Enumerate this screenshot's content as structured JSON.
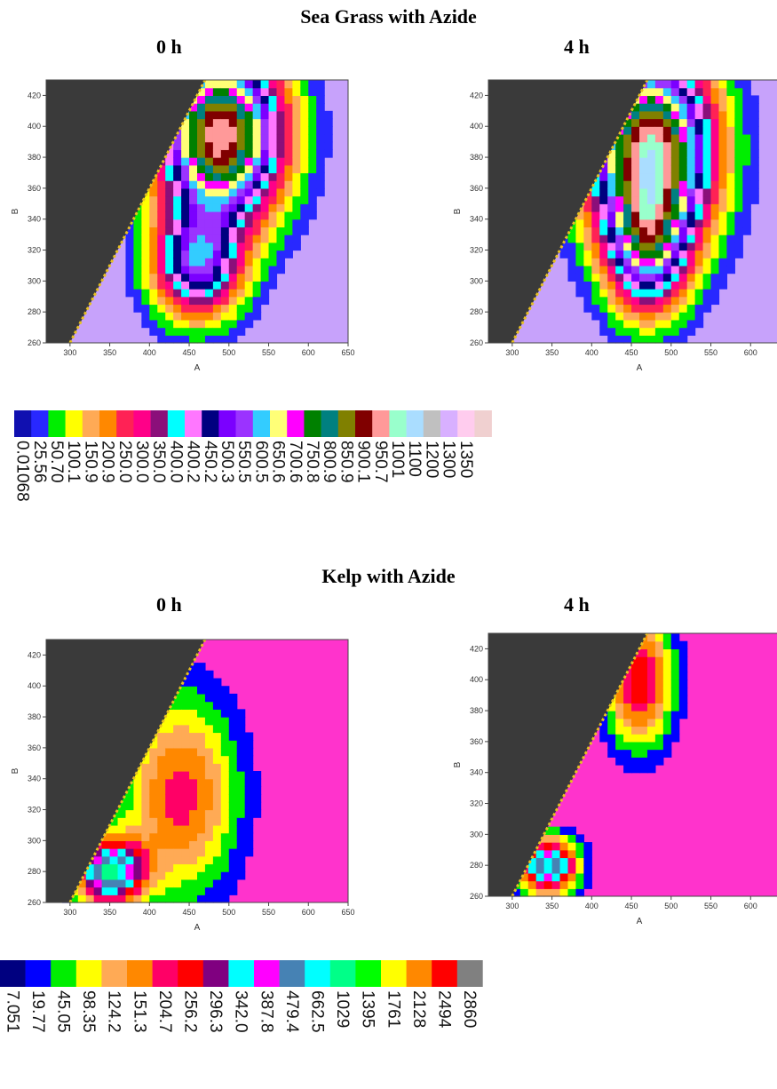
{
  "sections": [
    {
      "title": "Sea Grass with Azide",
      "panel_titles": [
        "0 h",
        "4 h"
      ]
    },
    {
      "title": "Kelp with Azide",
      "panel_titles": [
        "0 h",
        "4 h"
      ]
    }
  ],
  "colors": {
    "masked": "#3a3a3a",
    "axis": "#444444"
  },
  "chart_data": [
    {
      "type": "heatmap",
      "title": "0 h",
      "xlabel": "A",
      "ylabel": "B",
      "xlim": [
        270,
        650
      ],
      "ylim": [
        260,
        430
      ],
      "xticks": [
        300,
        350,
        400,
        450,
        500,
        550,
        600,
        650
      ],
      "yticks": [
        260,
        280,
        300,
        320,
        340,
        360,
        380,
        400,
        420
      ],
      "mask": "B > A - 40",
      "background_fill": "#c7a2fb",
      "peaks": [
        {
          "x": 490,
          "y": 395,
          "sx": 55,
          "sy": 40,
          "amp": 1.0
        },
        {
          "x": 460,
          "y": 310,
          "sx": 40,
          "sy": 25,
          "amp": 0.55
        }
      ]
    },
    {
      "type": "heatmap",
      "title": "4 h",
      "xlabel": "A",
      "ylabel": "B",
      "xlim": [
        270,
        650
      ],
      "ylim": [
        260,
        430
      ],
      "xticks": [
        300,
        350,
        400,
        450,
        500,
        550,
        600,
        650
      ],
      "yticks": [
        260,
        280,
        300,
        320,
        340,
        360,
        380,
        400,
        420
      ],
      "mask": "B > A - 40",
      "background_fill": "#c7a2fb",
      "peaks": [
        {
          "x": 475,
          "y": 385,
          "sx": 55,
          "sy": 45,
          "amp": 1.0
        },
        {
          "x": 470,
          "y": 320,
          "sx": 35,
          "sy": 30,
          "amp": 0.5
        }
      ]
    },
    {
      "type": "heatmap",
      "title": "0 h",
      "xlabel": "A",
      "ylabel": "B",
      "xlim": [
        270,
        650
      ],
      "ylim": [
        260,
        430
      ],
      "xticks": [
        300,
        350,
        400,
        450,
        500,
        550,
        600,
        650
      ],
      "yticks": [
        260,
        280,
        300,
        320,
        340,
        360,
        380,
        400,
        420
      ],
      "mask": "B > A - 40",
      "background_fill": "#ff33cc",
      "peaks": [
        {
          "x": 350,
          "y": 280,
          "sx": 30,
          "sy": 15,
          "amp": 1.0
        },
        {
          "x": 440,
          "y": 330,
          "sx": 50,
          "sy": 45,
          "amp": 0.5
        }
      ]
    },
    {
      "type": "heatmap",
      "title": "4 h",
      "xlabel": "A",
      "ylabel": "B",
      "xlim": [
        270,
        650
      ],
      "ylim": [
        260,
        430
      ],
      "xticks": [
        300,
        350,
        400,
        450,
        500,
        550,
        600,
        650
      ],
      "yticks": [
        260,
        280,
        300,
        320,
        340,
        360,
        380,
        400,
        420
      ],
      "mask": "B > A - 40",
      "background_fill": "#ff33cc",
      "peaks": [
        {
          "x": 345,
          "y": 280,
          "sx": 25,
          "sy": 12,
          "amp": 1.0
        },
        {
          "x": 460,
          "y": 400,
          "sx": 30,
          "sy": 30,
          "amp": 0.6
        }
      ]
    }
  ],
  "colorbars": [
    {
      "labels": [
        "0.01068",
        "25.56",
        "50.70",
        "100.1",
        "150.9",
        "200.9",
        "250.0",
        "300.0",
        "350.0",
        "400.0",
        "400.2",
        "450.2",
        "500.3",
        "550.5",
        "600.5",
        "650.6",
        "700.6",
        "750.8",
        "800.9",
        "850.9",
        "900.1",
        "950.7",
        "1001",
        "1100",
        "1200",
        "1300",
        "1350"
      ],
      "colors": [
        "#1010b0",
        "#2828ff",
        "#00ee00",
        "#ffff00",
        "#ffaa55",
        "#ff8800",
        "#ff2255",
        "#ff0088",
        "#8b0f7a",
        "#00ffff",
        "#ff77ff",
        "#000080",
        "#7b00ff",
        "#9b33ff",
        "#33ccff",
        "#ffff77",
        "#ff00ff",
        "#008000",
        "#008080",
        "#808000",
        "#800000",
        "#ff9999",
        "#99ffcc",
        "#aaddff",
        "#c0c0c0",
        "#d8b0ff",
        "#ffccee",
        "#f0d0d0"
      ]
    },
    {
      "labels": [
        "7.051",
        "19.77",
        "45.05",
        "98.35",
        "124.2",
        "151.3",
        "204.7",
        "256.2",
        "296.3",
        "342.0",
        "387.8",
        "479.4",
        "662.5",
        "1029",
        "1395",
        "1761",
        "2128",
        "2494",
        "2860"
      ],
      "colors": [
        "#000080",
        "#0000ff",
        "#00ee00",
        "#ffff00",
        "#ffaa55",
        "#ff8800",
        "#ff0066",
        "#ff0000",
        "#800080",
        "#00ffff",
        "#ff00ff",
        "#4682b4",
        "#00ffff",
        "#00ff88",
        "#00ff00",
        "#ffff00",
        "#ff8800",
        "#ff0000",
        "#808080"
      ]
    }
  ]
}
